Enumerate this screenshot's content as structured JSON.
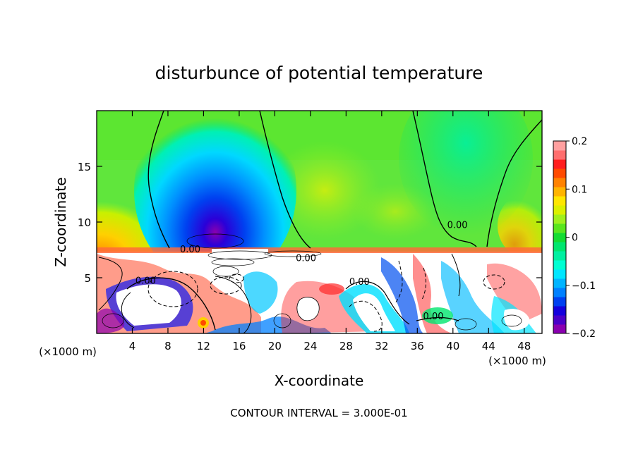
{
  "chart_data": {
    "type": "heatmap",
    "title": "disturbunce of potential temperature",
    "xlabel": "X-coordinate",
    "ylabel": "Z-coordinate",
    "x_unit_left": "(×1000 m)",
    "x_unit_right": "(×1000 m)",
    "footer": "CONTOUR INTERVAL = 3.000E-01",
    "xlim": [
      0,
      50
    ],
    "ylim": [
      0,
      20
    ],
    "x_ticks": [
      4,
      8,
      12,
      16,
      20,
      24,
      28,
      32,
      36,
      40,
      44,
      48
    ],
    "y_ticks": [
      5,
      10,
      15
    ],
    "colorbar": {
      "range": [
        -0.2,
        0.2
      ],
      "ticks": [
        {
          "value": 0.2,
          "label": "0.2"
        },
        {
          "value": 0.1,
          "label": "0.1"
        },
        {
          "value": 0,
          "label": "0"
        },
        {
          "value": -0.1,
          "label": "−0.1"
        },
        {
          "value": -0.2,
          "label": "−0.2"
        }
      ],
      "colors": [
        "#8a00b0",
        "#4a00c8",
        "#1400dc",
        "#0040f0",
        "#0080ff",
        "#00b4ff",
        "#00e6ff",
        "#00ffd2",
        "#00f0a0",
        "#00e66e",
        "#14dc32",
        "#5ae61e",
        "#a0f01e",
        "#dcf000",
        "#ffe600",
        "#ffb400",
        "#ff8200",
        "#ff4a00",
        "#ff1e1e",
        "#ff6e6e",
        "#ffa0a0"
      ]
    },
    "contour_labels": [
      {
        "text": "0.00",
        "x": 40.5,
        "y": 9.6
      },
      {
        "text": "0.00",
        "x": 10.5,
        "y": 7.4
      },
      {
        "text": "0.00",
        "x": 23.5,
        "y": 6.6
      },
      {
        "text": "0.00",
        "x": 5.5,
        "y": 4.6
      },
      {
        "text": "0.00",
        "x": 29.5,
        "y": 4.5
      },
      {
        "text": "0.00",
        "x": 37.8,
        "y": 1.4
      }
    ],
    "field_features": {
      "upper_cold_core": {
        "x": 13.5,
        "z": 10.5,
        "value": -0.2
      },
      "lower_layer_top_z": 7.5,
      "zero_contour_left_x": 8,
      "zero_contour_right_x": 34
    }
  }
}
